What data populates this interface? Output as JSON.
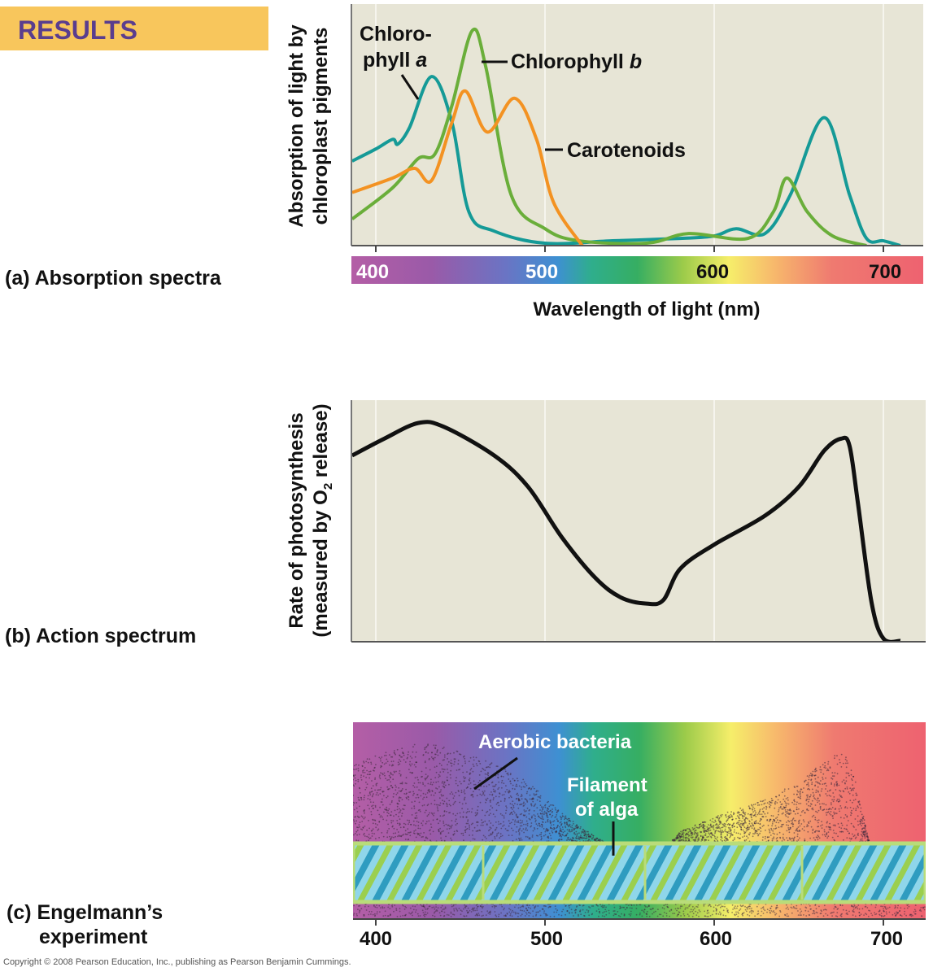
{
  "header": {
    "results_label": "RESULTS",
    "results_bg": "#f8c65c",
    "results_color": "#5a3d8e"
  },
  "copyright": "Copyright © 2008 Pearson Education, Inc., publishing as Pearson Benjamin Cummings.",
  "panels": {
    "a_label": "(a) Absorption spectra",
    "b_label": "(b) Action spectrum",
    "c_label_1": "(c) Engelmann’s",
    "c_label_2": "experiment"
  },
  "engelmann": {
    "bacteria_label": "Aerobic bacteria",
    "filament_label_1": "Filament",
    "filament_label_2": "of alga",
    "x_ticks": [
      "400",
      "500",
      "600",
      "700"
    ]
  },
  "chart_data": [
    {
      "type": "line",
      "title": "",
      "xlabel": "Wavelength of light (nm)",
      "ylabel_1": "Absorption of light by",
      "ylabel_2": "chloroplast pigments",
      "xlim": [
        386,
        723
      ],
      "ylim": [
        0,
        1
      ],
      "x_ticks": [
        "400",
        "500",
        "600",
        "700"
      ],
      "grid": true,
      "background": "#e7e5d6",
      "series": [
        {
          "name": "Chlorophyll a",
          "name_line1": "Chloro-",
          "name_line2": "phyll ",
          "name_italic": "a",
          "color": "#159a97",
          "x": [
            386,
            400,
            410,
            413,
            420,
            433,
            445,
            455,
            470,
            500,
            540,
            580,
            600,
            613,
            630,
            645,
            665,
            680,
            690,
            700,
            710
          ],
          "y": [
            0.35,
            0.4,
            0.44,
            0.42,
            0.49,
            0.7,
            0.51,
            0.14,
            0.06,
            0.01,
            0.02,
            0.03,
            0.04,
            0.07,
            0.05,
            0.21,
            0.53,
            0.21,
            0.03,
            0.02,
            0.0
          ]
        },
        {
          "name": "Chlorophyll b",
          "name_line1": "Chlorophyll ",
          "name_italic": "b",
          "color": "#6aae3a",
          "x": [
            386,
            410,
            425,
            435,
            445,
            457,
            465,
            480,
            500,
            520,
            560,
            585,
            620,
            635,
            643,
            655,
            670,
            690
          ],
          "y": [
            0.11,
            0.24,
            0.36,
            0.38,
            0.58,
            0.89,
            0.74,
            0.21,
            0.07,
            0.02,
            0.01,
            0.05,
            0.03,
            0.14,
            0.28,
            0.14,
            0.04,
            0.0
          ]
        },
        {
          "name": "Carotenoids",
          "color": "#f39222",
          "x": [
            386,
            410,
            423,
            433,
            445,
            453,
            466,
            482,
            495,
            505,
            522
          ],
          "y": [
            0.22,
            0.28,
            0.32,
            0.27,
            0.51,
            0.64,
            0.47,
            0.61,
            0.44,
            0.18,
            0.0
          ]
        }
      ]
    },
    {
      "type": "line",
      "title": "",
      "xlabel": "",
      "ylabel_1": "Rate of photosynthesis",
      "ylabel_2a": "(measured by O",
      "ylabel_2sub": "2",
      "ylabel_2b": " release)",
      "xlim": [
        386,
        723
      ],
      "ylim": [
        0,
        1
      ],
      "grid": true,
      "background": "#e7e5d6",
      "series": [
        {
          "color": "#111111",
          "x": [
            386,
            405,
            425,
            440,
            470,
            490,
            510,
            530,
            545,
            560,
            570,
            580,
            600,
            630,
            650,
            665,
            675,
            680,
            685,
            693,
            700,
            710
          ],
          "y": [
            0.77,
            0.84,
            0.905,
            0.89,
            0.77,
            0.64,
            0.43,
            0.26,
            0.18,
            0.155,
            0.17,
            0.3,
            0.4,
            0.52,
            0.64,
            0.79,
            0.84,
            0.81,
            0.57,
            0.16,
            0.01,
            0.0
          ]
        }
      ]
    },
    {
      "type": "scatter",
      "title": "",
      "xlim": [
        386,
        723
      ],
      "x_ticks": [
        "400",
        "500",
        "600",
        "700"
      ],
      "description_series": "bacteria density follows action spectrum"
    }
  ]
}
